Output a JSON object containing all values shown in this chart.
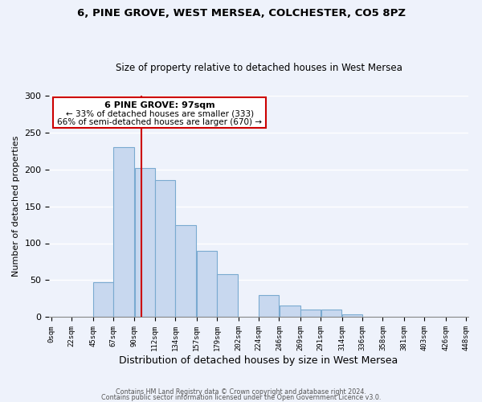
{
  "title": "6, PINE GROVE, WEST MERSEA, COLCHESTER, CO5 8PZ",
  "subtitle": "Size of property relative to detached houses in West Mersea",
  "xlabel": "Distribution of detached houses by size in West Mersea",
  "ylabel": "Number of detached properties",
  "footer_line1": "Contains HM Land Registry data © Crown copyright and database right 2024.",
  "footer_line2": "Contains public sector information licensed under the Open Government Licence v3.0.",
  "bar_color": "#c8d8ef",
  "bar_edge_color": "#7aaad0",
  "highlight_line_color": "#cc0000",
  "annotation_box_edge_color": "#cc0000",
  "bin_edges": [
    0,
    22,
    45,
    67,
    90,
    112,
    134,
    157,
    179,
    202,
    224,
    246,
    269,
    291,
    314,
    336,
    358,
    381,
    403,
    426,
    448
  ],
  "counts": [
    0,
    0,
    47,
    230,
    202,
    185,
    125,
    90,
    58,
    0,
    30,
    16,
    10,
    10,
    4,
    0,
    0,
    0,
    0,
    0
  ],
  "tick_labels": [
    "0sqm",
    "22sqm",
    "45sqm",
    "67sqm",
    "90sqm",
    "112sqm",
    "134sqm",
    "157sqm",
    "179sqm",
    "202sqm",
    "224sqm",
    "246sqm",
    "269sqm",
    "291sqm",
    "314sqm",
    "336sqm",
    "358sqm",
    "381sqm",
    "403sqm",
    "426sqm",
    "448sqm"
  ],
  "ylim": [
    0,
    300
  ],
  "xlim_min": -2,
  "xlim_max": 450,
  "highlight_x": 97,
  "annotation_text_line1": "6 PINE GROVE: 97sqm",
  "annotation_text_line2": "← 33% of detached houses are smaller (333)",
  "annotation_text_line3": "66% of semi-detached houses are larger (670) →",
  "background_color": "#eef2fb"
}
